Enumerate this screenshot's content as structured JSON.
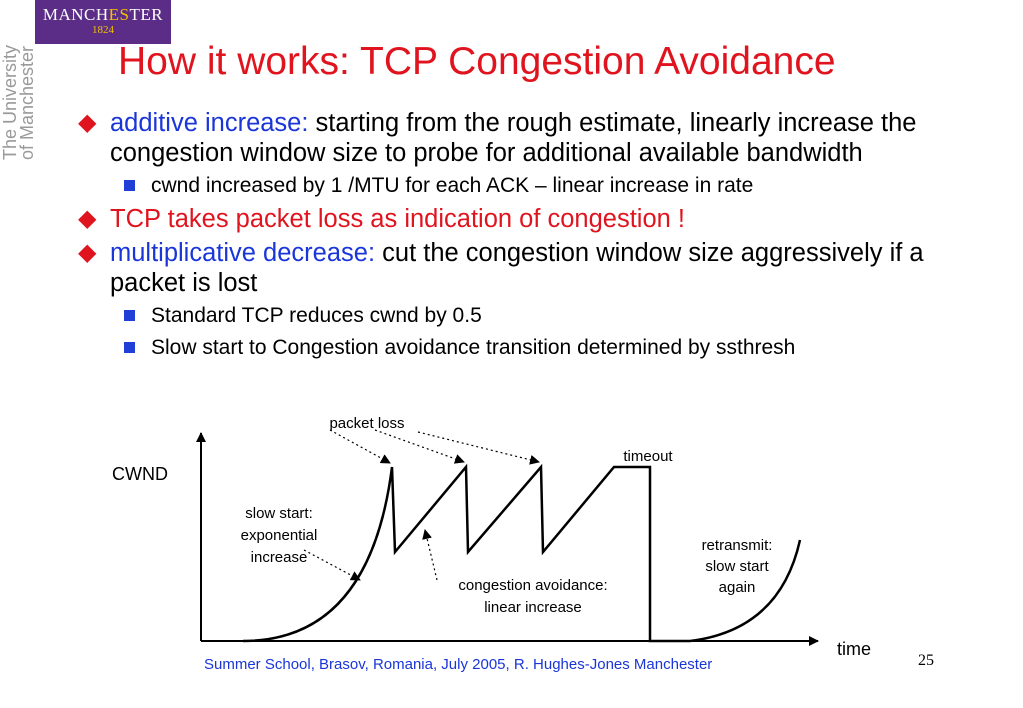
{
  "logo": {
    "line1_a": "MANCH",
    "line1_b": "ES",
    "line1_c": "TER",
    "line2": "1824"
  },
  "side": {
    "line1": "The University",
    "line2": "of Manchester"
  },
  "title": "How it works: TCP Congestion Avoidance",
  "bullets": [
    {
      "lead": "additive increase:",
      "text": " starting from the rough estimate, linearly increase the congestion window size to probe for additional available bandwidth"
    },
    {
      "lead": "TCP takes packet loss as indication of congestion !",
      "text": ""
    },
    {
      "lead": "multiplicative decrease:",
      "text": " cut the congestion window size aggressively if a packet is lost"
    }
  ],
  "subbullets": [
    "cwnd increased by 1 /MTU for each ACK – linear increase in rate",
    "Standard TCP reduces cwnd by 0.5",
    "Slow start to Congestion avoidance transition determined by ssthresh"
  ],
  "diagram": {
    "y_label": "CWND",
    "x_label": "time",
    "packet_loss": "packet loss",
    "timeout": "timeout",
    "slow_start_1": "slow start:",
    "slow_start_2": "exponential",
    "slow_start_3": "increase",
    "ca_1": "congestion avoidance:",
    "ca_2": "linear increase",
    "rt_1": "retransmit:",
    "rt_2": "slow start",
    "rt_3": "again"
  },
  "footer": "Summer School, Brasov, Romania, July 2005,  R. Hughes-Jones  Manchester",
  "page_number": "25",
  "colors": {
    "title": "#e0141e",
    "accent_blue": "#1a35d8",
    "logo_bg": "#5b2d86",
    "logo_gold": "#f2c200"
  }
}
